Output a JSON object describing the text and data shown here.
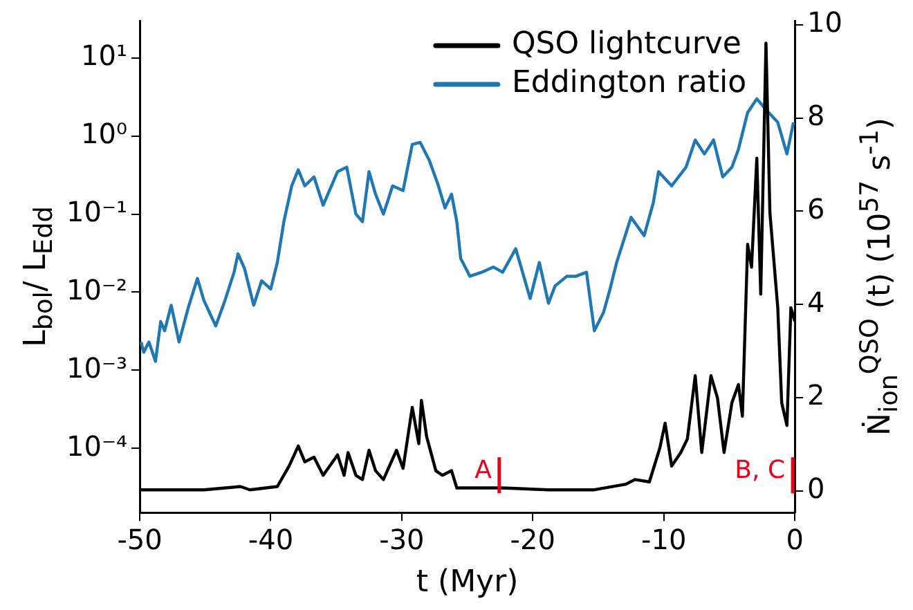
{
  "chart_data": {
    "type": "line",
    "xlabel": "t (Myr)",
    "ylabel": "L$_{bol}$/ L$_{Edd}$",
    "y2label": "Ṅ$_{ion}$$^{QSO}$ (t) (10$^{57}$ s$^{-1}$)",
    "xlim": [
      -50,
      0
    ],
    "xticks": [
      -50,
      -40,
      -30,
      -20,
      -10,
      0
    ],
    "ylim": [
      1.5e-05,
      30
    ],
    "yticks": [
      {
        "value": 0.0001,
        "label": "10⁻⁴"
      },
      {
        "value": 0.001,
        "label": "10⁻³"
      },
      {
        "value": 0.01,
        "label": "10⁻²"
      },
      {
        "value": 0.1,
        "label": "10⁻¹"
      },
      {
        "value": 1,
        "label": "10⁰"
      },
      {
        "value": 10,
        "label": "10¹"
      }
    ],
    "y2lim": [
      -0.47,
      10.09
    ],
    "y2ticks": [
      0,
      2,
      4,
      6,
      8,
      10
    ],
    "log": "y",
    "grid": false,
    "legend": "top right",
    "marker": "none",
    "line_style": "solid",
    "series": [
      {
        "name": "QSO lightcurve",
        "color": "#000000",
        "axis": "y2",
        "x": [
          -49.9,
          -45.1,
          -42.3,
          -41.6,
          -39.5,
          -38.6,
          -37.9,
          -37.4,
          -36.7,
          -36.0,
          -34.9,
          -34.4,
          -34.1,
          -33.5,
          -33.0,
          -32.5,
          -32.0,
          -31.4,
          -30.4,
          -29.9,
          -29.2,
          -28.7,
          -28.5,
          -28.1,
          -27.4,
          -26.9,
          -26.2,
          -25.8,
          -22.3,
          -18.8,
          -15.3,
          -12.9,
          -12.2,
          -11.1,
          -10.3,
          -9.9,
          -9.4,
          -8.7,
          -8.2,
          -7.6,
          -7.1,
          -6.4,
          -5.9,
          -5.4,
          -4.8,
          -4.3,
          -4.0,
          -3.6,
          -3.3,
          -2.9,
          -2.6,
          -2.2,
          -1.9,
          -1.3,
          -1.0,
          -0.6,
          -0.3,
          0.0
        ],
        "values": [
          0.02,
          0.02,
          0.09,
          0.02,
          0.09,
          0.53,
          0.96,
          0.62,
          0.72,
          0.33,
          0.77,
          0.33,
          0.82,
          0.33,
          0.24,
          0.87,
          0.43,
          0.24,
          0.87,
          0.48,
          1.79,
          1.01,
          1.94,
          1.16,
          0.43,
          0.33,
          0.43,
          0.06,
          0.06,
          0.02,
          0.02,
          0.14,
          0.24,
          0.19,
          0.92,
          1.45,
          0.53,
          0.82,
          1.11,
          2.47,
          0.82,
          2.47,
          1.99,
          0.82,
          1.89,
          2.28,
          1.6,
          5.29,
          4.8,
          7.14,
          4.22,
          9.61,
          5.97,
          3.93,
          1.89,
          1.4,
          3.93,
          3.64
        ]
      },
      {
        "name": "Eddington ratio",
        "color": "#1f77b4",
        "x": [
          -49.9,
          -49.7,
          -49.3,
          -48.8,
          -48.4,
          -48.1,
          -47.6,
          -47.0,
          -46.3,
          -45.6,
          -45.1,
          -44.2,
          -43.5,
          -42.8,
          -42.5,
          -42.0,
          -41.3,
          -40.7,
          -40.0,
          -39.5,
          -39.0,
          -38.4,
          -37.9,
          -37.4,
          -36.7,
          -36.0,
          -34.9,
          -34.2,
          -33.5,
          -33.0,
          -32.5,
          -32.0,
          -31.4,
          -30.7,
          -29.9,
          -29.2,
          -28.6,
          -27.9,
          -27.2,
          -26.7,
          -26.2,
          -25.8,
          -25.5,
          -24.8,
          -23.9,
          -23.0,
          -22.3,
          -21.3,
          -20.2,
          -19.5,
          -18.8,
          -18.3,
          -17.4,
          -16.7,
          -15.9,
          -15.3,
          -14.6,
          -14.1,
          -13.6,
          -12.5,
          -11.5,
          -10.8,
          -10.4,
          -9.4,
          -8.3,
          -7.6,
          -6.9,
          -6.2,
          -5.5,
          -4.8,
          -4.3,
          -3.6,
          -2.9,
          -2.0,
          -1.3,
          -0.6,
          -0.1
        ],
        "values": [
          0.0023,
          0.0017,
          0.0023,
          0.0013,
          0.0042,
          0.0032,
          0.0068,
          0.0023,
          0.0063,
          0.015,
          0.0078,
          0.0037,
          0.0078,
          0.018,
          0.031,
          0.02,
          0.0068,
          0.014,
          0.011,
          0.024,
          0.08,
          0.23,
          0.37,
          0.23,
          0.3,
          0.13,
          0.35,
          0.4,
          0.1,
          0.08,
          0.35,
          0.18,
          0.1,
          0.23,
          0.2,
          0.78,
          0.83,
          0.49,
          0.23,
          0.12,
          0.18,
          0.08,
          0.027,
          0.016,
          0.018,
          0.021,
          0.018,
          0.036,
          0.0083,
          0.024,
          0.0072,
          0.012,
          0.016,
          0.016,
          0.018,
          0.0032,
          0.0055,
          0.011,
          0.024,
          0.091,
          0.053,
          0.14,
          0.35,
          0.23,
          0.4,
          0.89,
          0.59,
          0.89,
          0.3,
          0.4,
          0.68,
          2.0,
          3.0,
          2.0,
          1.5,
          0.59,
          1.5
        ]
      }
    ],
    "ref_lines": [
      {
        "axis": "x",
        "value": -22.4,
        "label": "A",
        "color": "#e8001c"
      },
      {
        "axis": "x",
        "value": 0,
        "label": "B, C",
        "color": "#e8001c"
      }
    ]
  }
}
